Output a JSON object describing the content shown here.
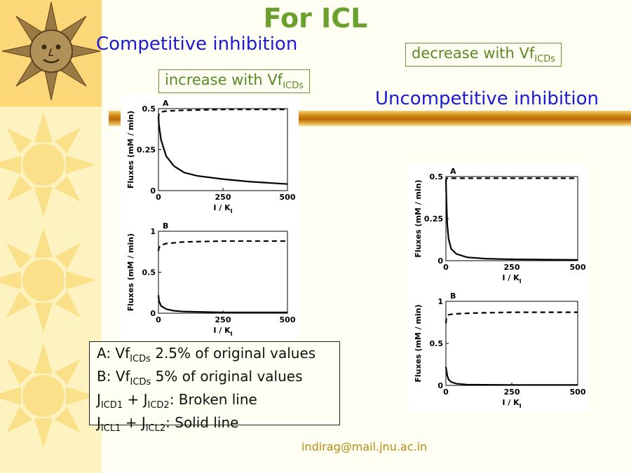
{
  "slide": {
    "title": "For ICL",
    "heading_competitive": "Competitive inhibition",
    "heading_uncompetitive": "Uncompetitive inhibition",
    "note_increase": {
      "text": "increase with Vf",
      "sub": "ICDs"
    },
    "note_decrease": {
      "text": "decrease with Vf",
      "sub": "ICDs"
    },
    "legend": [
      {
        "pre": "A: Vf",
        "sub1": "ICDs",
        "post": " 2.5% of original values"
      },
      {
        "pre": "B: Vf",
        "sub1": "ICDs",
        "post": " 5% of original values"
      },
      {
        "pre": "J",
        "sub1": "ICD1",
        "mid": " + J",
        "sub2": "ICD2",
        "post": ": Broken line"
      },
      {
        "pre": "J",
        "sub1": "ICL1",
        "mid": " + J",
        "sub2": "ICL2",
        "post": ": Solid line"
      }
    ],
    "email": "indirag@mail.jnu.ac.in"
  },
  "chart_data": [
    {
      "group": "Competitive inhibition",
      "panel": "A",
      "type": "line",
      "xlabel": "I / K",
      "xlabel_sub": "I",
      "ylabel": "Fluxes (mM / min)",
      "xlim": [
        0,
        500
      ],
      "ylim": [
        0,
        0.5
      ],
      "xticks": [
        "0",
        "250",
        "500"
      ],
      "yticks": [
        "0",
        "0.25",
        "0.5"
      ],
      "series": [
        {
          "style": "dashed",
          "x": [
            0,
            2,
            10,
            30,
            100,
            250,
            500
          ],
          "y": [
            0.44,
            0.47,
            0.48,
            0.485,
            0.49,
            0.495,
            0.495
          ]
        },
        {
          "style": "solid",
          "x": [
            0,
            2,
            10,
            30,
            60,
            100,
            150,
            250,
            350,
            500
          ],
          "y": [
            0.45,
            0.4,
            0.31,
            0.21,
            0.15,
            0.11,
            0.09,
            0.07,
            0.055,
            0.04
          ]
        }
      ]
    },
    {
      "group": "Competitive inhibition",
      "panel": "B",
      "type": "line",
      "xlabel": "I / K",
      "xlabel_sub": "I",
      "ylabel": "Fluxes (mM / min)",
      "xlim": [
        0,
        500
      ],
      "ylim": [
        0,
        1
      ],
      "xticks": [
        "0",
        "250",
        "500"
      ],
      "yticks": [
        "0",
        "0.5",
        "1"
      ],
      "series": [
        {
          "style": "dashed",
          "x": [
            0,
            2,
            10,
            30,
            100,
            250,
            500
          ],
          "y": [
            0.76,
            0.8,
            0.83,
            0.85,
            0.87,
            0.88,
            0.88
          ]
        },
        {
          "style": "solid",
          "x": [
            0,
            2,
            10,
            30,
            60,
            100,
            250,
            500
          ],
          "y": [
            0.22,
            0.15,
            0.09,
            0.05,
            0.03,
            0.02,
            0.01,
            0.01
          ]
        }
      ]
    },
    {
      "group": "Uncompetitive inhibition",
      "panel": "A",
      "type": "line",
      "xlabel": "I / K",
      "xlabel_sub": "I",
      "ylabel": "Fluxes (mM / min)",
      "xlim": [
        0,
        500
      ],
      "ylim": [
        0,
        0.5
      ],
      "xticks": [
        "0",
        "250",
        "500"
      ],
      "yticks": [
        "0",
        "0.25",
        "0.5"
      ],
      "series": [
        {
          "style": "dashed",
          "x": [
            0,
            2,
            10,
            30,
            100,
            250,
            500
          ],
          "y": [
            0.47,
            0.49,
            0.49,
            0.49,
            0.49,
            0.49,
            0.49
          ]
        },
        {
          "style": "solid",
          "x": [
            0,
            2,
            5,
            10,
            20,
            40,
            80,
            150,
            250,
            500
          ],
          "y": [
            0.48,
            0.36,
            0.22,
            0.13,
            0.07,
            0.04,
            0.02,
            0.012,
            0.008,
            0.005
          ]
        }
      ]
    },
    {
      "group": "Uncompetitive inhibition",
      "panel": "B",
      "type": "line",
      "xlabel": "I / K",
      "xlabel_sub": "I",
      "ylabel": "Fluxes (mM / min)",
      "xlim": [
        0,
        500
      ],
      "ylim": [
        0,
        1
      ],
      "xticks": [
        "0",
        "250",
        "500"
      ],
      "yticks": [
        "0",
        "0.5",
        "1"
      ],
      "series": [
        {
          "style": "dashed",
          "x": [
            0,
            2,
            10,
            30,
            100,
            250,
            500
          ],
          "y": [
            0.74,
            0.8,
            0.84,
            0.85,
            0.86,
            0.87,
            0.87
          ]
        },
        {
          "style": "solid",
          "x": [
            0,
            2,
            5,
            10,
            20,
            40,
            80,
            150,
            250,
            500
          ],
          "y": [
            0.22,
            0.18,
            0.12,
            0.07,
            0.04,
            0.02,
            0.01,
            0.008,
            0.005,
            0.005
          ]
        }
      ]
    }
  ]
}
